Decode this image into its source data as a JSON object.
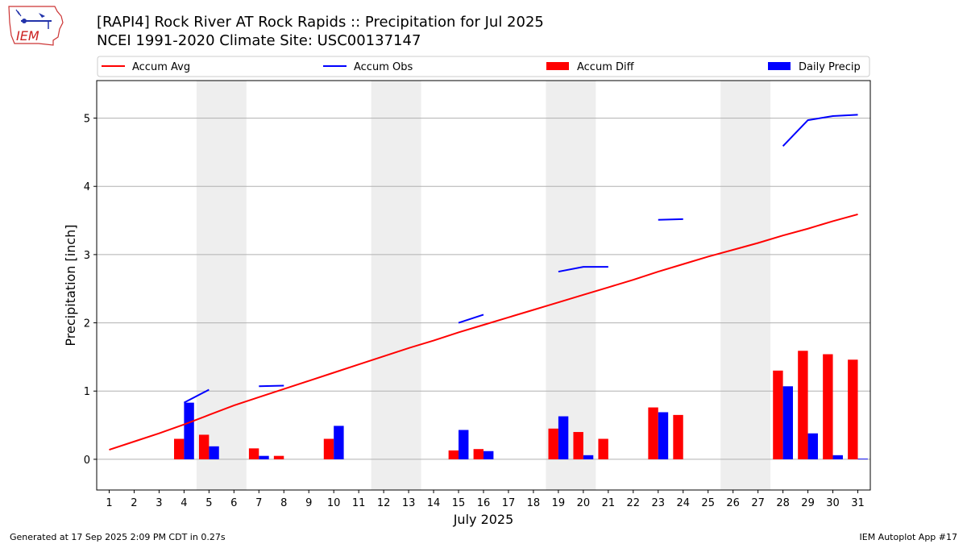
{
  "header": {
    "title_line1": "[RAPI4] Rock River  AT Rock Rapids :: Precipitation for Jul 2025",
    "title_line2": "NCEI 1991-2020 Climate Site: USC00137147",
    "logo_text": "IEM"
  },
  "footer": {
    "generated": "Generated at 17 Sep 2025 2:09 PM CDT in 0.27s",
    "app": "IEM Autoplot App #17"
  },
  "colors": {
    "avg": "#ff0000",
    "obs": "#0000ff",
    "diff": "#ff0000",
    "daily": "#0000ff",
    "weekend_band": "#eeeeee",
    "grid": "#b0b0b0"
  },
  "chart_data": {
    "type": "bar",
    "title": "[RAPI4] Rock River  AT Rock Rapids :: Precipitation for Jul 2025",
    "subtitle": "NCEI 1991-2020 Climate Site: USC00137147",
    "xlabel": "July 2025",
    "ylabel": "Precipitation [inch]",
    "x": [
      1,
      2,
      3,
      4,
      5,
      6,
      7,
      8,
      9,
      10,
      11,
      12,
      13,
      14,
      15,
      16,
      17,
      18,
      19,
      20,
      21,
      22,
      23,
      24,
      25,
      26,
      27,
      28,
      29,
      30,
      31
    ],
    "xlim": [
      0.5,
      31.5
    ],
    "ylim": [
      -0.45,
      5.55
    ],
    "yticks": [
      0,
      1,
      2,
      3,
      4,
      5
    ],
    "grid": "horizontal",
    "legend_position": "top",
    "weekend_bands": [
      [
        4.5,
        6.5
      ],
      [
        11.5,
        13.5
      ],
      [
        18.5,
        20.5
      ],
      [
        25.5,
        27.5
      ]
    ],
    "legend": [
      "Accum Avg",
      "Accum Obs",
      "Accum Diff",
      "Daily Precip"
    ],
    "series": [
      {
        "name": "Accum Avg",
        "kind": "line",
        "values": [
          0.14,
          0.26,
          0.38,
          0.51,
          0.65,
          0.79,
          0.91,
          1.03,
          1.15,
          1.27,
          1.39,
          1.51,
          1.63,
          1.74,
          1.86,
          1.97,
          2.08,
          2.19,
          2.3,
          2.41,
          2.52,
          2.63,
          2.75,
          2.86,
          2.97,
          3.07,
          3.17,
          3.28,
          3.38,
          3.49,
          3.59
        ]
      },
      {
        "name": "Accum Obs",
        "kind": "line",
        "values": [
          null,
          null,
          null,
          0.83,
          1.02,
          null,
          1.07,
          1.08,
          null,
          null,
          null,
          null,
          null,
          null,
          2.0,
          2.12,
          null,
          null,
          2.75,
          2.82,
          2.82,
          null,
          3.51,
          3.52,
          null,
          null,
          null,
          4.59,
          4.97,
          5.03,
          5.05
        ]
      },
      {
        "name": "Accum Diff",
        "kind": "bar",
        "values": [
          0,
          0,
          0,
          0.3,
          0.36,
          0,
          0.16,
          0.05,
          0,
          0.3,
          0,
          0,
          0,
          0,
          0.13,
          0.15,
          0,
          0,
          0.45,
          0.4,
          0.3,
          0,
          0.76,
          0.65,
          0,
          0,
          0,
          1.3,
          1.59,
          1.54,
          1.46
        ]
      },
      {
        "name": "Daily Precip",
        "kind": "bar",
        "values": [
          0,
          0,
          0,
          0.83,
          0.19,
          0,
          0.05,
          0,
          0,
          0.49,
          0,
          0,
          0,
          0,
          0.43,
          0.12,
          0,
          0,
          0.63,
          0.06,
          0,
          0,
          0.69,
          0,
          0,
          0,
          0,
          1.07,
          0.38,
          0.06,
          0.01
        ]
      }
    ]
  }
}
